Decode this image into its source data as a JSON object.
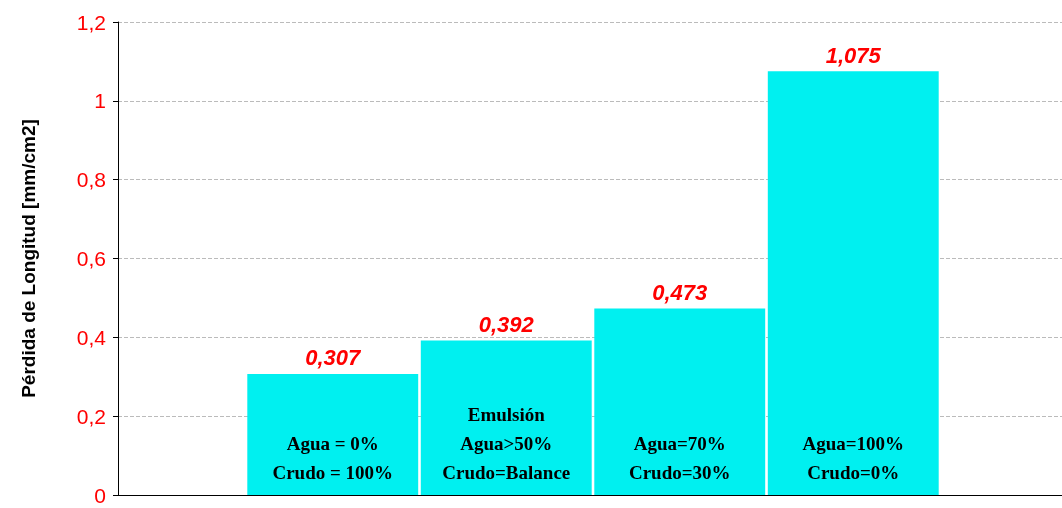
{
  "chart_data": {
    "type": "bar",
    "ylabel": "Pérdida de Longitud [mm/cm2]",
    "categories": [
      "Agua = 0%\nCrudo = 100%",
      "Emulsión\nAgua>50%\nCrudo=Balance",
      "Agua=70%\nCrudo=30%",
      "Agua=100%\nCrudo=0%"
    ],
    "values": [
      0.307,
      0.392,
      0.473,
      1.075
    ],
    "value_labels": [
      "0,307",
      "0,392",
      "0,473",
      "1,075"
    ],
    "color": "#00f0f0",
    "ylim": [
      0,
      1.2
    ],
    "yticks": [
      0,
      {
        "value": 0.2,
        "label": "0,2"
      },
      {
        "value": 0.4,
        "label": "0,4"
      },
      {
        "value": 0.6,
        "label": "0,6"
      },
      {
        "value": 0.8,
        "label": "0,8"
      },
      1,
      {
        "value": 1.2,
        "label": "1,2"
      }
    ],
    "grid": "y"
  }
}
